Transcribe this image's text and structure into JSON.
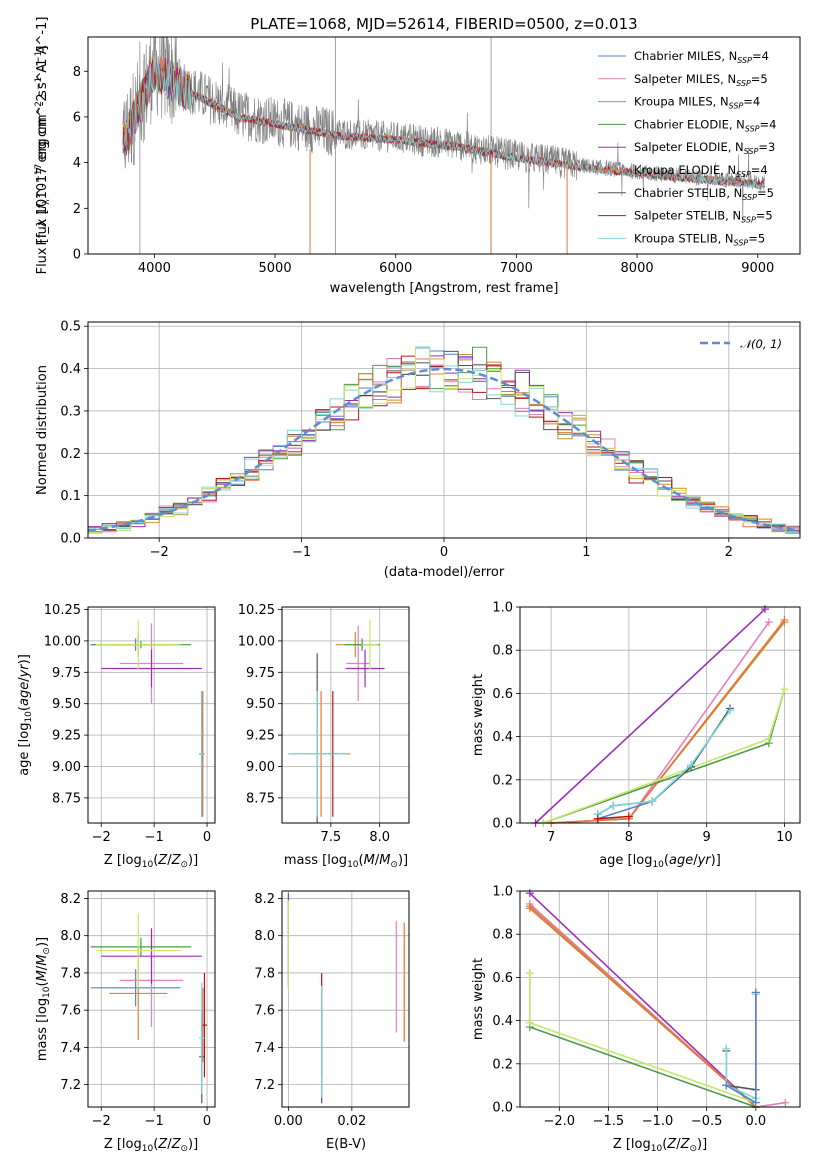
{
  "colors": {
    "chabrier_miles": "#5b7fd1",
    "salpeter_miles": "#e57fbf",
    "kroupa_miles": "#c8902e",
    "chabrier_elodie": "#4c9a4c",
    "salpeter_elodie": "#9b2fb5",
    "kroupa_elodie": "#e8743a",
    "chabrier_stelib": "#555555",
    "salpeter_stelib": "#b5141b",
    "kroupa_stelib": "#7ed8dc",
    "extra_green": "#c7e86a",
    "normal": "#5f8dd3"
  },
  "chart_data": [
    {
      "id": "spectrum",
      "type": "line",
      "title": "PLATE=1068, MJD=52614, FIBERID=0500, z=0.013",
      "xlabel": "wavelength [Angstrom, rest frame]",
      "ylabel": "Flux [f_λ 10^-17 erg cm^-2 s^-1 A^-1]",
      "xlim": [
        3450,
        9350
      ],
      "ylim": [
        0,
        9.5
      ],
      "xticks": [
        "4000",
        "5000",
        "6000",
        "7000",
        "8000",
        "9000"
      ],
      "yticks": [
        "0",
        "2",
        "4",
        "6",
        "8"
      ],
      "grid": false,
      "legend_position": "top-right",
      "legend": [
        "Chabrier MILES, N_SSP=4",
        "Salpeter MILES, N_SSP=5",
        "Kroupa MILES, N_SSP=4",
        "Chabrier ELODIE, N_SSP=4",
        "Salpeter ELODIE, N_SSP=3",
        "Kroupa ELODIE, N_SSP=4",
        "Chabrier STELIB, N_SSP=5",
        "Salpeter STELIB, N_SSP=5",
        "Kroupa STELIB, N_SSP=5"
      ],
      "continuum_points": [
        [
          3750,
          5.0
        ],
        [
          4000,
          8.2
        ],
        [
          4300,
          7.2
        ],
        [
          4700,
          6.1
        ],
        [
          5000,
          5.8
        ],
        [
          5500,
          5.3
        ],
        [
          6000,
          5.1
        ],
        [
          6500,
          4.8
        ],
        [
          7000,
          4.3
        ],
        [
          7500,
          3.9
        ],
        [
          8000,
          3.6
        ],
        [
          8500,
          3.35
        ],
        [
          9050,
          3.1
        ]
      ]
    },
    {
      "id": "residuals",
      "type": "histogram",
      "xlabel": "(data-model)/error",
      "ylabel": "Normed distribution",
      "xlim": [
        -2.5,
        2.5
      ],
      "ylim": [
        0,
        0.51
      ],
      "xticks": [
        "−2",
        "−1",
        "0",
        "1",
        "2"
      ],
      "yticks": [
        "0.0",
        "0.1",
        "0.2",
        "0.3",
        "0.4",
        "0.5"
      ],
      "grid": true,
      "legend_position": "top-right",
      "normal_label": "𝒩(0, 1)",
      "bin_width": 0.1,
      "bin_start": -2.5
    },
    {
      "id": "age_vs_Z",
      "type": "errorbar",
      "xlabel": "Z [log10(Z/Z⊙)]",
      "ylabel": "age [log10(age/yr)]",
      "xlim": [
        -2.25,
        0.15
      ],
      "ylim": [
        8.55,
        10.27
      ],
      "xticks": [
        "−2",
        "−1",
        "0"
      ],
      "yticks": [
        "8.75",
        "9.00",
        "9.25",
        "9.50",
        "9.75",
        "10.00",
        "10.25"
      ],
      "grid": true,
      "points": [
        {
          "c": "chabrier_miles",
          "x": -1.35,
          "xe": 0.85,
          "y": 9.97,
          "ye": 0.05
        },
        {
          "c": "salpeter_miles",
          "x": -1.05,
          "xe": 0.6,
          "y": 9.82,
          "ye": 0.32
        },
        {
          "c": "kroupa_miles",
          "x": -1.3,
          "xe": 0.55,
          "y": 9.97,
          "ye": 0.1
        },
        {
          "c": "chabrier_elodie",
          "x": -1.25,
          "xe": 0.95,
          "y": 9.97,
          "ye": 0.03
        },
        {
          "c": "salpeter_elodie",
          "x": -1.05,
          "xe": 0.95,
          "y": 9.78,
          "ye": 0.15
        },
        {
          "c": "kroupa_elodie",
          "x": -0.08,
          "xe": 0.02,
          "y": 9.1,
          "ye": 0.5
        },
        {
          "c": "chabrier_stelib",
          "x": -0.1,
          "xe": 0.05,
          "y": 9.1,
          "ye": 0.5
        },
        {
          "c": "salpeter_stelib",
          "x": -0.1,
          "xe": 0.04,
          "y": 9.1,
          "ye": 0.5
        },
        {
          "c": "kroupa_stelib",
          "x": -0.1,
          "xe": 0.05,
          "y": 9.1,
          "ye": 0.5
        },
        {
          "c": "extra_green",
          "x": -1.3,
          "xe": 0.8,
          "y": 9.97,
          "ye": 0.2
        }
      ]
    },
    {
      "id": "age_vs_mass",
      "type": "errorbar",
      "xlabel": "mass [log10(M/M⊙)]",
      "ylabel": "",
      "xlim": [
        7.0,
        8.3
      ],
      "ylim": [
        8.55,
        10.27
      ],
      "xticks": [
        "7.5",
        "8.0"
      ],
      "yticks": [
        "8.75",
        "9.00",
        "9.25",
        "9.50",
        "9.75",
        "10.00",
        "10.25"
      ],
      "grid": true,
      "points": [
        {
          "c": "chabrier_miles",
          "x": 7.82,
          "xe": 0.08,
          "y": 9.97,
          "ye": 0.05
        },
        {
          "c": "salpeter_miles",
          "x": 7.78,
          "xe": 0.12,
          "y": 9.82,
          "ye": 0.3
        },
        {
          "c": "kroupa_miles",
          "x": 7.75,
          "xe": 0.2,
          "y": 9.97,
          "ye": 0.1
        },
        {
          "c": "chabrier_elodie",
          "x": 7.82,
          "xe": 0.18,
          "y": 9.97,
          "ye": 0.03
        },
        {
          "c": "salpeter_elodie",
          "x": 7.85,
          "xe": 0.2,
          "y": 9.78,
          "ye": 0.15
        },
        {
          "c": "kroupa_elodie",
          "x": 7.4,
          "xe": 0.3,
          "y": 9.1,
          "ye": 0.5
        },
        {
          "c": "chabrier_stelib",
          "x": 7.36,
          "xe": 0.3,
          "y": 9.1,
          "ye": 0.8
        },
        {
          "c": "salpeter_stelib",
          "x": 7.52,
          "xe": 0.05,
          "y": 9.1,
          "ye": 0.5
        },
        {
          "c": "kroupa_stelib",
          "x": 7.36,
          "xe": 0.3,
          "y": 9.1,
          "ye": 0.5
        },
        {
          "c": "extra_green",
          "x": 7.9,
          "xe": 0.08,
          "y": 9.97,
          "ye": 0.2
        }
      ]
    },
    {
      "id": "weight_vs_age",
      "type": "line",
      "xlabel": "age [log10(age/yr)]",
      "ylabel": "mass weight",
      "xlim": [
        6.6,
        10.2
      ],
      "ylim": [
        0,
        1
      ],
      "xticks": [
        "7",
        "8",
        "9",
        "10"
      ],
      "yticks": [
        "0.0",
        "0.2",
        "0.4",
        "0.6",
        "0.8",
        "1.0"
      ],
      "grid": true,
      "series": [
        {
          "c": "salpeter_elodie",
          "x": [
            6.8,
            9.75
          ],
          "y": [
            0.0,
            0.99
          ]
        },
        {
          "c": "salpeter_miles",
          "x": [
            7.0,
            8.0,
            9.8
          ],
          "y": [
            0.0,
            0.02,
            0.93
          ]
        },
        {
          "c": "kroupa_miles",
          "x": [
            7.0,
            8.0,
            10.0
          ],
          "y": [
            0.0,
            0.02,
            0.93
          ]
        },
        {
          "c": "kroupa_elodie",
          "x": [
            7.0,
            8.0,
            10.0
          ],
          "y": [
            0.0,
            0.02,
            0.94
          ]
        },
        {
          "c": "chabrier_elodie",
          "x": [
            6.9,
            9.8,
            10.0
          ],
          "y": [
            0.0,
            0.37,
            0.62
          ]
        },
        {
          "c": "extra_green",
          "x": [
            6.9,
            9.8,
            10.0
          ],
          "y": [
            0.0,
            0.39,
            0.62
          ]
        },
        {
          "c": "chabrier_miles",
          "x": [
            7.6,
            8.3,
            8.8,
            9.3
          ],
          "y": [
            0.02,
            0.1,
            0.26,
            0.53
          ]
        },
        {
          "c": "chabrier_stelib",
          "x": [
            7.6,
            7.8,
            8.3,
            8.8,
            9.3
          ],
          "y": [
            0.04,
            0.08,
            0.1,
            0.26,
            0.53
          ]
        },
        {
          "c": "kroupa_stelib",
          "x": [
            7.6,
            7.8,
            8.3,
            8.8,
            9.3
          ],
          "y": [
            0.04,
            0.08,
            0.1,
            0.27,
            0.52
          ]
        },
        {
          "c": "salpeter_stelib",
          "x": [
            7.6,
            8.0
          ],
          "y": [
            0.02,
            0.03
          ]
        }
      ]
    },
    {
      "id": "mass_vs_Z",
      "type": "errorbar",
      "xlabel": "Z [log10(Z/Z⊙)]",
      "ylabel": "mass [log10(M/M⊙)]",
      "xlim": [
        -2.25,
        0.15
      ],
      "ylim": [
        7.08,
        8.24
      ],
      "xticks": [
        "−2",
        "−1",
        "0"
      ],
      "yticks": [
        "7.2",
        "7.4",
        "7.6",
        "7.8",
        "8.0",
        "8.2"
      ],
      "grid": true,
      "points": [
        {
          "c": "chabrier_miles",
          "x": -1.35,
          "xe": 0.85,
          "y": 7.72,
          "ye": 0.1
        },
        {
          "c": "salpeter_miles",
          "x": -1.05,
          "xe": 0.6,
          "y": 7.76,
          "ye": 0.25
        },
        {
          "c": "kroupa_miles",
          "x": -1.3,
          "xe": 0.55,
          "y": 7.69,
          "ye": 0.25
        },
        {
          "c": "chabrier_elodie",
          "x": -1.25,
          "xe": 0.95,
          "y": 7.94,
          "ye": 0.05
        },
        {
          "c": "salpeter_elodie",
          "x": -1.05,
          "xe": 0.95,
          "y": 7.89,
          "ye": 0.15
        },
        {
          "c": "kroupa_elodie",
          "x": -0.08,
          "xe": 0.02,
          "y": 7.52,
          "ye": 0.2
        },
        {
          "c": "chabrier_stelib",
          "x": -0.1,
          "xe": 0.05,
          "y": 7.35,
          "ye": 0.25
        },
        {
          "c": "salpeter_stelib",
          "x": -0.05,
          "xe": 0.05,
          "y": 7.52,
          "ye": 0.28
        },
        {
          "c": "kroupa_stelib",
          "x": -0.1,
          "xe": 0.05,
          "y": 7.45,
          "ye": 0.3
        },
        {
          "c": "extra_green",
          "x": -1.3,
          "xe": 0.8,
          "y": 7.92,
          "ye": 0.2
        }
      ]
    },
    {
      "id": "mass_vs_ebv",
      "type": "errorbar",
      "xlabel": "E(B-V)",
      "ylabel": "",
      "xlim": [
        -0.002,
        0.038
      ],
      "ylim": [
        7.08,
        8.24
      ],
      "xticks": [
        "0.00",
        "0.02"
      ],
      "yticks": [
        "7.2",
        "7.4",
        "7.6",
        "7.8",
        "8.0",
        "8.2"
      ],
      "grid": true,
      "points": [
        {
          "c": "salpeter_miles",
          "x": 0.034,
          "xe": 0,
          "y": 7.78,
          "ye": 0.3
        },
        {
          "c": "kroupa_elodie",
          "x": 0.0365,
          "xe": 0,
          "y": 7.75,
          "ye": 0.32
        },
        {
          "c": "salpeter_elodie",
          "x": 0.0,
          "xe": 0,
          "y": 7.98,
          "ye": 0.25
        },
        {
          "c": "extra_green",
          "x": 0.0,
          "xe": 0,
          "y": 7.95,
          "ye": 0.24
        },
        {
          "c": "salpeter_stelib",
          "x": 0.0105,
          "xe": 0,
          "y": 7.52,
          "ye": 0.28
        },
        {
          "c": "chabrier_stelib",
          "x": 0.0105,
          "xe": 0,
          "y": 7.35,
          "ye": 0.25
        },
        {
          "c": "kroupa_stelib",
          "x": 0.0105,
          "xe": 0,
          "y": 7.43,
          "ye": 0.3
        }
      ]
    },
    {
      "id": "weight_vs_Z",
      "type": "line",
      "xlabel": "Z [log10(Z/Z⊙)]",
      "ylabel": "mass weight",
      "xlim": [
        -2.4,
        0.45
      ],
      "ylim": [
        0,
        1
      ],
      "xticks": [
        "−2.0",
        "−1.5",
        "−1.0",
        "−0.5",
        "0.0"
      ],
      "yticks": [
        "0.0",
        "0.2",
        "0.4",
        "0.6",
        "0.8",
        "1.0"
      ],
      "grid": true,
      "series": [
        {
          "c": "salpeter_elodie",
          "x": [
            -2.3,
            0.0
          ],
          "y": [
            0.99,
            0.0
          ]
        },
        {
          "c": "salpeter_miles",
          "x": [
            -2.3,
            0.0,
            0.3
          ],
          "y": [
            0.94,
            0.0,
            0.02
          ]
        },
        {
          "c": "kroupa_miles",
          "x": [
            -2.3,
            0.0
          ],
          "y": [
            0.93,
            0.0
          ]
        },
        {
          "c": "kroupa_elodie",
          "x": [
            -2.3,
            0.0
          ],
          "y": [
            0.92,
            0.0
          ]
        },
        {
          "c": "chabrier_elodie",
          "x": [
            -2.3,
            -2.3,
            0.0
          ],
          "y": [
            0.62,
            0.37,
            0.0
          ]
        },
        {
          "c": "extra_green",
          "x": [
            -2.3,
            -2.3,
            0.0
          ],
          "y": [
            0.62,
            0.39,
            0.02
          ]
        },
        {
          "c": "chabrier_stelib",
          "x": [
            -0.3,
            -0.3,
            0.0,
            0.0
          ],
          "y": [
            0.26,
            0.1,
            0.08,
            0.53
          ]
        },
        {
          "c": "kroupa_stelib",
          "x": [
            -0.3,
            -0.3,
            0.0,
            0.0
          ],
          "y": [
            0.27,
            0.1,
            0.04,
            0.52
          ]
        },
        {
          "c": "chabrier_miles",
          "x": [
            -0.3,
            0.0,
            0.0
          ],
          "y": [
            0.1,
            0.02,
            0.53
          ]
        }
      ]
    }
  ]
}
